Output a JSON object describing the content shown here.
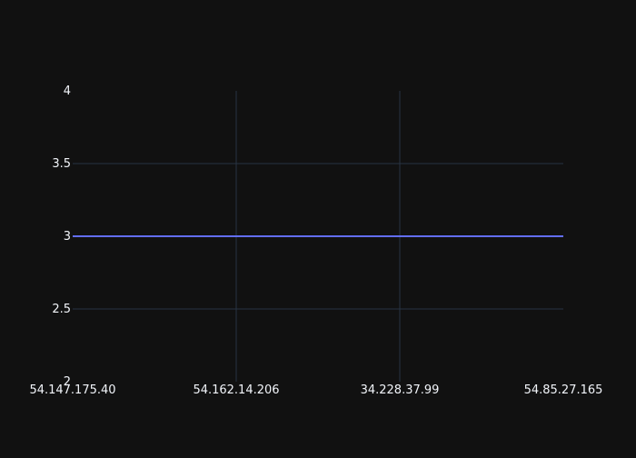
{
  "chart_data": {
    "type": "line",
    "categories": [
      "54.147.175.40",
      "54.162.14.206",
      "34.228.37.99",
      "54.85.27.165"
    ],
    "series": [
      {
        "values": [
          3,
          3,
          3,
          3
        ]
      }
    ],
    "ylim": [
      2,
      4
    ],
    "yticks": [
      2,
      2.5,
      3,
      3.5,
      4
    ],
    "ytick_labels": [
      "2",
      "2.5",
      "3",
      "3.5",
      "4"
    ],
    "grid": true,
    "colors": {
      "background": "#111111",
      "grid": "#283442",
      "line": "#636efa",
      "text": "#f2f5fa"
    }
  }
}
